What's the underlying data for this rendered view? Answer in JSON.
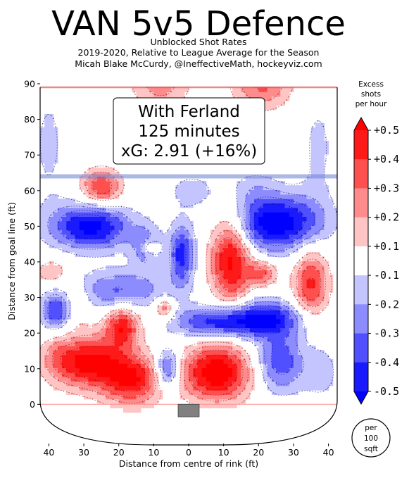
{
  "chart_data": {
    "type": "heatmap",
    "title": "VAN 5v5 Defence",
    "subtitle_lines": [
      "Unblocked Shot Rates",
      "2019-2020, Relative to League Average for the Season",
      "Micah Blake McCurdy, @IneffectiveMath, hockeyviz.com"
    ],
    "annotation_lines": [
      "With Ferland",
      "125 minutes",
      "xG: 2.91 (+16%)"
    ],
    "xlabel": "Distance from centre of rink (ft)",
    "ylabel": "Distance from goal line (ft)",
    "x_ticks": [
      "40",
      "30",
      "20",
      "10",
      "0",
      "10",
      "20",
      "30",
      "40"
    ],
    "y_ticks": [
      "0",
      "10",
      "20",
      "30",
      "40",
      "50",
      "60",
      "70",
      "80",
      "90"
    ],
    "xlim": [
      -42.5,
      42.5
    ],
    "ylim": [
      -11,
      90
    ],
    "colorbar": {
      "title_lines": [
        "Excess",
        "shots",
        "per hour"
      ],
      "labels": [
        "+0.5",
        "+0.4",
        "+0.3",
        "+0.2",
        "+0.1",
        "-0.1",
        "-0.2",
        "-0.3",
        "-0.4",
        "-0.5"
      ],
      "colors": [
        "#ff1a1a",
        "#ff5050",
        "#ff8c8c",
        "#ffc4c4",
        "#ffffff",
        "#c4c4ff",
        "#8c8cff",
        "#5050ff",
        "#1a1aff"
      ],
      "over_color": "#ff0000",
      "under_color": "#0000ff",
      "unit_lines": [
        "per",
        "100",
        "sqft"
      ]
    },
    "blobs": [
      {
        "x": -40,
        "y": 73,
        "sx": 4,
        "sy": 14,
        "v": -0.12
      },
      {
        "x": 37,
        "y": 72,
        "sx": 4,
        "sy": 13,
        "v": -0.12
      },
      {
        "x": -8,
        "y": 90,
        "sx": 6,
        "sy": 5,
        "v": 0.25
      },
      {
        "x": 21,
        "y": 90,
        "sx": 6,
        "sy": 5,
        "v": 0.32
      },
      {
        "x": -25,
        "y": 61,
        "sx": 4,
        "sy": 3.5,
        "v": 0.42
      },
      {
        "x": 1,
        "y": 60,
        "sx": 5,
        "sy": 3.5,
        "v": -0.15
      },
      {
        "x": 18,
        "y": 61,
        "sx": 5,
        "sy": 3.5,
        "v": -0.12
      },
      {
        "x": -28,
        "y": 50,
        "sx": 8,
        "sy": 4.5,
        "v": -0.55
      },
      {
        "x": -12,
        "y": 44,
        "sx": 3,
        "sy": 4,
        "v": -0.3
      },
      {
        "x": -2,
        "y": 42,
        "sx": 2.5,
        "sy": 6,
        "v": -0.45
      },
      {
        "x": 25,
        "y": 51,
        "sx": 9,
        "sy": 5.5,
        "v": -0.6
      },
      {
        "x": 12,
        "y": 41,
        "sx": 4,
        "sy": 9,
        "v": 0.55
      },
      {
        "x": -11,
        "y": 44,
        "sx": 1.8,
        "sy": 1.8,
        "v": 0.28
      },
      {
        "x": -39,
        "y": 37,
        "sx": 3.5,
        "sy": 3,
        "v": 0.2
      },
      {
        "x": -32,
        "y": 31,
        "sx": 3.5,
        "sy": 3,
        "v": 0.14
      },
      {
        "x": -20,
        "y": 32,
        "sx": 10,
        "sy": 4,
        "v": -0.32
      },
      {
        "x": 21,
        "y": 37,
        "sx": 3,
        "sy": 2.5,
        "v": 0.32
      },
      {
        "x": 35,
        "y": 34,
        "sx": 3.5,
        "sy": 7,
        "v": 0.42
      },
      {
        "x": -7,
        "y": 27,
        "sx": 2,
        "sy": 2,
        "v": 0.32
      },
      {
        "x": -38,
        "y": 26,
        "sx": 3,
        "sy": 4,
        "v": -0.4
      },
      {
        "x": -32,
        "y": 25,
        "sx": 2.5,
        "sy": 3,
        "v": 0.1
      },
      {
        "x": 21,
        "y": 24,
        "sx": 8,
        "sy": 3.5,
        "v": -0.52
      },
      {
        "x": -19,
        "y": 22,
        "sx": 3.5,
        "sy": 4,
        "v": 0.48
      },
      {
        "x": 6,
        "y": 23,
        "sx": 8,
        "sy": 3,
        "v": -0.38
      },
      {
        "x": -29,
        "y": 12,
        "sx": 7,
        "sy": 5,
        "v": 0.55
      },
      {
        "x": -16,
        "y": 7,
        "sx": 6,
        "sy": 5,
        "v": 0.48
      },
      {
        "x": 8,
        "y": 9,
        "sx": 7,
        "sy": 5.5,
        "v": 0.6
      },
      {
        "x": -6,
        "y": 10,
        "sx": 2.5,
        "sy": 4,
        "v": -0.45
      },
      {
        "x": 26,
        "y": 12,
        "sx": 5,
        "sy": 6,
        "v": -0.38
      },
      {
        "x": 38,
        "y": 9,
        "sx": 4,
        "sy": 6,
        "v": -0.14
      },
      {
        "x": -38,
        "y": 14,
        "sx": 3,
        "sy": 5,
        "v": 0.12
      }
    ]
  }
}
